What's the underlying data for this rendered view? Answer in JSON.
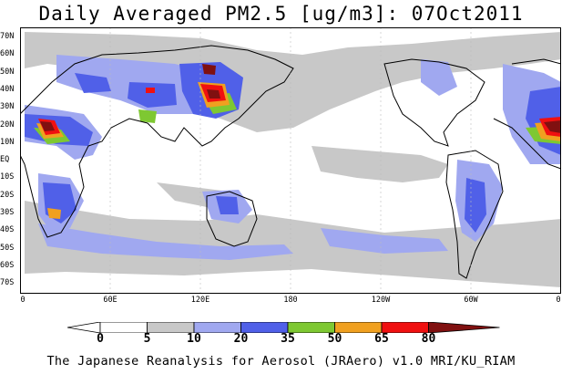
{
  "title": "Daily Averaged PM2.5 [ug/m3]: 07Oct2011",
  "lat_labels": [
    "70N",
    "60N",
    "50N",
    "40N",
    "30N",
    "20N",
    "10N",
    "EQ",
    "10S",
    "20S",
    "30S",
    "40S",
    "50S",
    "60S",
    "70S"
  ],
  "lon_labels": [
    "0",
    "60E",
    "120E",
    "180",
    "120W",
    "60W",
    "0"
  ],
  "colorbar": {
    "levels": [
      "0",
      "5",
      "10",
      "20",
      "35",
      "50",
      "65",
      "80"
    ],
    "colors": [
      "#ffffff",
      "#c8c8c8",
      "#a0a8f0",
      "#5060e8",
      "#7ec832",
      "#f0a020",
      "#f01010",
      "#801010"
    ]
  },
  "footer": "The Japanese Reanalysis for Aerosol (JRAero) v1.0 MRI/KU_RIAM"
}
